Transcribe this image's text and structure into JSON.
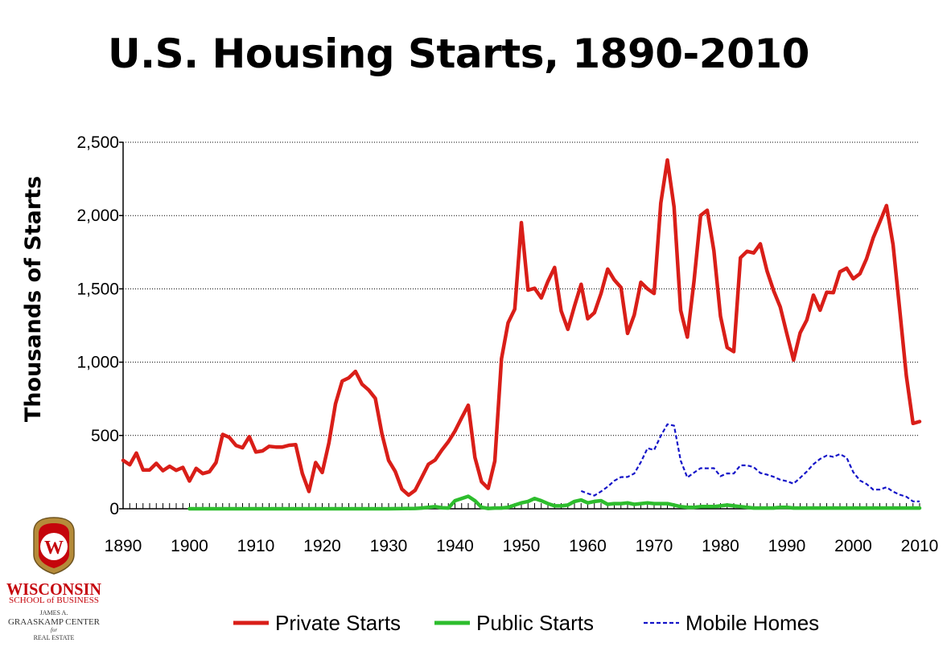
{
  "slide": {
    "title": "U.S. Housing Starts, 1890-2010"
  },
  "logo": {
    "wordmark": "WISCONSIN",
    "school": "SCHOOL of BUSINESS",
    "center_line1": "JAMES A.",
    "center_line2": "GRAASKAMP CENTER",
    "center_line3": "for",
    "center_line4": "REAL ESTATE",
    "crest_letter": "W"
  },
  "chart_data": {
    "type": "line",
    "title": "U.S. Housing Starts, 1890-2010",
    "xlabel": "",
    "ylabel": "Thousands of Starts",
    "xlim": [
      1890,
      2010
    ],
    "ylim": [
      0,
      2500
    ],
    "x_ticks": [
      "1890",
      "1900",
      "1910",
      "1920",
      "1930",
      "1940",
      "1950",
      "1960",
      "1970",
      "1980",
      "1990",
      "2000",
      "2010"
    ],
    "y_ticks": [
      "0",
      "500",
      "1,000",
      "1,500",
      "2,000",
      "2,500"
    ],
    "y_tick_values": [
      0,
      500,
      1000,
      1500,
      2000,
      2500
    ],
    "grid": "horizontal dotted",
    "legend_position": "bottom",
    "series": [
      {
        "name": "Private Starts",
        "color": "#d91e18",
        "style": "solid",
        "points": [
          [
            1890,
            330
          ],
          [
            1891,
            300
          ],
          [
            1892,
            380
          ],
          [
            1893,
            265
          ],
          [
            1894,
            265
          ],
          [
            1895,
            310
          ],
          [
            1896,
            260
          ],
          [
            1897,
            290
          ],
          [
            1898,
            262
          ],
          [
            1899,
            282
          ],
          [
            1900,
            189
          ],
          [
            1901,
            275
          ],
          [
            1902,
            240
          ],
          [
            1903,
            253
          ],
          [
            1904,
            315
          ],
          [
            1905,
            507
          ],
          [
            1906,
            487
          ],
          [
            1907,
            432
          ],
          [
            1908,
            416
          ],
          [
            1909,
            492
          ],
          [
            1910,
            387
          ],
          [
            1911,
            395
          ],
          [
            1912,
            426
          ],
          [
            1913,
            421
          ],
          [
            1914,
            421
          ],
          [
            1915,
            433
          ],
          [
            1916,
            437
          ],
          [
            1917,
            240
          ],
          [
            1918,
            118
          ],
          [
            1919,
            315
          ],
          [
            1920,
            247
          ],
          [
            1921,
            449
          ],
          [
            1922,
            716
          ],
          [
            1923,
            871
          ],
          [
            1924,
            893
          ],
          [
            1925,
            937
          ],
          [
            1926,
            849
          ],
          [
            1927,
            810
          ],
          [
            1928,
            753
          ],
          [
            1929,
            509
          ],
          [
            1930,
            330
          ],
          [
            1931,
            254
          ],
          [
            1932,
            134
          ],
          [
            1933,
            93
          ],
          [
            1934,
            126
          ],
          [
            1935,
            215
          ],
          [
            1936,
            304
          ],
          [
            1937,
            332
          ],
          [
            1938,
            399
          ],
          [
            1939,
            458
          ],
          [
            1940,
            530
          ],
          [
            1941,
            620
          ],
          [
            1942,
            706
          ],
          [
            1943,
            350
          ],
          [
            1944,
            184
          ],
          [
            1945,
            139
          ],
          [
            1946,
            325
          ],
          [
            1947,
            1023
          ],
          [
            1948,
            1268
          ],
          [
            1949,
            1362
          ],
          [
            1950,
            1952
          ],
          [
            1951,
            1491
          ],
          [
            1952,
            1504
          ],
          [
            1953,
            1438
          ],
          [
            1954,
            1551
          ],
          [
            1955,
            1646
          ],
          [
            1956,
            1349
          ],
          [
            1957,
            1224
          ],
          [
            1958,
            1382
          ],
          [
            1959,
            1531
          ],
          [
            1960,
            1296
          ],
          [
            1961,
            1337
          ],
          [
            1962,
            1468
          ],
          [
            1963,
            1635
          ],
          [
            1964,
            1561
          ],
          [
            1965,
            1510
          ],
          [
            1966,
            1196
          ],
          [
            1967,
            1322
          ],
          [
            1968,
            1545
          ],
          [
            1969,
            1500
          ],
          [
            1970,
            1469
          ],
          [
            1971,
            2085
          ],
          [
            1972,
            2379
          ],
          [
            1973,
            2058
          ],
          [
            1974,
            1353
          ],
          [
            1975,
            1171
          ],
          [
            1976,
            1548
          ],
          [
            1977,
            2001
          ],
          [
            1978,
            2036
          ],
          [
            1979,
            1760
          ],
          [
            1980,
            1313
          ],
          [
            1981,
            1100
          ],
          [
            1982,
            1072
          ],
          [
            1983,
            1712
          ],
          [
            1984,
            1756
          ],
          [
            1985,
            1745
          ],
          [
            1986,
            1807
          ],
          [
            1987,
            1623
          ],
          [
            1988,
            1488
          ],
          [
            1989,
            1376
          ],
          [
            1990,
            1193
          ],
          [
            1991,
            1014
          ],
          [
            1992,
            1200
          ],
          [
            1993,
            1288
          ],
          [
            1994,
            1457
          ],
          [
            1995,
            1354
          ],
          [
            1996,
            1477
          ],
          [
            1997,
            1474
          ],
          [
            1998,
            1617
          ],
          [
            1999,
            1641
          ],
          [
            2000,
            1569
          ],
          [
            2001,
            1603
          ],
          [
            2002,
            1705
          ],
          [
            2003,
            1848
          ],
          [
            2004,
            1956
          ],
          [
            2005,
            2068
          ],
          [
            2006,
            1801
          ],
          [
            2007,
            1355
          ],
          [
            2008,
            906
          ],
          [
            2009,
            582
          ],
          [
            2010,
            595
          ]
        ]
      },
      {
        "name": "Public Starts",
        "color": "#2dbd2d",
        "style": "solid",
        "points": [
          [
            1900,
            0
          ],
          [
            1910,
            0
          ],
          [
            1920,
            0
          ],
          [
            1930,
            0
          ],
          [
            1934,
            2
          ],
          [
            1935,
            5
          ],
          [
            1936,
            10
          ],
          [
            1937,
            15
          ],
          [
            1938,
            7
          ],
          [
            1939,
            5
          ],
          [
            1940,
            55
          ],
          [
            1941,
            70
          ],
          [
            1942,
            85
          ],
          [
            1943,
            55
          ],
          [
            1944,
            10
          ],
          [
            1945,
            2
          ],
          [
            1946,
            5
          ],
          [
            1947,
            5
          ],
          [
            1948,
            10
          ],
          [
            1949,
            25
          ],
          [
            1950,
            40
          ],
          [
            1951,
            50
          ],
          [
            1952,
            70
          ],
          [
            1953,
            55
          ],
          [
            1954,
            35
          ],
          [
            1955,
            20
          ],
          [
            1956,
            20
          ],
          [
            1957,
            25
          ],
          [
            1958,
            50
          ],
          [
            1959,
            60
          ],
          [
            1960,
            40
          ],
          [
            1961,
            50
          ],
          [
            1962,
            55
          ],
          [
            1963,
            30
          ],
          [
            1964,
            35
          ],
          [
            1965,
            35
          ],
          [
            1966,
            40
          ],
          [
            1967,
            30
          ],
          [
            1968,
            35
          ],
          [
            1969,
            40
          ],
          [
            1970,
            35
          ],
          [
            1971,
            35
          ],
          [
            1972,
            35
          ],
          [
            1973,
            25
          ],
          [
            1974,
            15
          ],
          [
            1975,
            10
          ],
          [
            1976,
            10
          ],
          [
            1977,
            15
          ],
          [
            1978,
            15
          ],
          [
            1979,
            15
          ],
          [
            1980,
            20
          ],
          [
            1981,
            25
          ],
          [
            1982,
            20
          ],
          [
            1983,
            15
          ],
          [
            1984,
            10
          ],
          [
            1985,
            5
          ],
          [
            1986,
            5
          ],
          [
            1987,
            5
          ],
          [
            1988,
            5
          ],
          [
            1989,
            10
          ],
          [
            1990,
            10
          ],
          [
            1991,
            5
          ],
          [
            1992,
            5
          ],
          [
            1995,
            5
          ],
          [
            2000,
            5
          ],
          [
            2005,
            5
          ],
          [
            2010,
            5
          ]
        ]
      },
      {
        "name": "Mobile Homes",
        "color": "#1414c8",
        "style": "dashed",
        "points": [
          [
            1959,
            121
          ],
          [
            1960,
            104
          ],
          [
            1961,
            90
          ],
          [
            1962,
            118
          ],
          [
            1963,
            151
          ],
          [
            1964,
            191
          ],
          [
            1965,
            216
          ],
          [
            1966,
            217
          ],
          [
            1967,
            240
          ],
          [
            1968,
            318
          ],
          [
            1969,
            413
          ],
          [
            1970,
            401
          ],
          [
            1971,
            497
          ],
          [
            1972,
            576
          ],
          [
            1973,
            567
          ],
          [
            1974,
            329
          ],
          [
            1975,
            213
          ],
          [
            1976,
            246
          ],
          [
            1977,
            277
          ],
          [
            1978,
            276
          ],
          [
            1979,
            277
          ],
          [
            1980,
            222
          ],
          [
            1981,
            241
          ],
          [
            1982,
            240
          ],
          [
            1983,
            296
          ],
          [
            1984,
            296
          ],
          [
            1985,
            284
          ],
          [
            1986,
            244
          ],
          [
            1987,
            233
          ],
          [
            1988,
            218
          ],
          [
            1989,
            198
          ],
          [
            1990,
            188
          ],
          [
            1991,
            171
          ],
          [
            1992,
            211
          ],
          [
            1993,
            254
          ],
          [
            1994,
            304
          ],
          [
            1995,
            340
          ],
          [
            1996,
            363
          ],
          [
            1997,
            354
          ],
          [
            1998,
            373
          ],
          [
            1999,
            348
          ],
          [
            2000,
            250
          ],
          [
            2001,
            193
          ],
          [
            2002,
            169
          ],
          [
            2003,
            131
          ],
          [
            2004,
            131
          ],
          [
            2005,
            147
          ],
          [
            2006,
            117
          ],
          [
            2007,
            96
          ],
          [
            2008,
            82
          ],
          [
            2009,
            50
          ],
          [
            2010,
            50
          ]
        ]
      }
    ]
  }
}
